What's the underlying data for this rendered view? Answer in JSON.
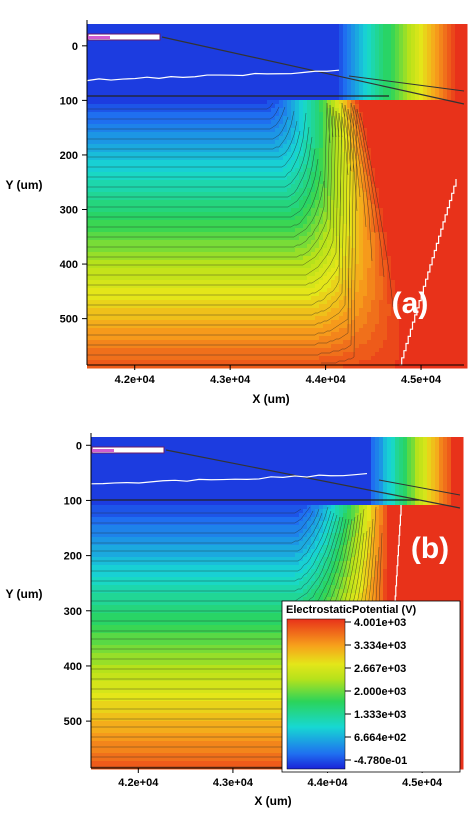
{
  "chart_data": [
    {
      "type": "heatmap",
      "panel_label": "(a)",
      "xlabel": "X (um)",
      "ylabel": "Y (um)",
      "xlim": [
        41500,
        45450
      ],
      "ylim": [
        585,
        -40
      ],
      "xticks": [
        "4.2e+04",
        "4.3e+04",
        "4.4e+04",
        "4.5e+04"
      ],
      "xtick_values": [
        42000,
        43000,
        44000,
        45000
      ],
      "yticks": [
        "0",
        "100",
        "200",
        "300",
        "400",
        "500"
      ],
      "ytick_values": [
        0,
        100,
        200,
        300,
        400,
        500
      ],
      "high_region_left_x": 44350,
      "high_region_bottom_x": 44900
    },
    {
      "type": "heatmap",
      "panel_label": "(b)",
      "xlabel": "X (um)",
      "ylabel": "Y (um)",
      "xlim": [
        41500,
        45400
      ],
      "ylim": [
        585,
        -15
      ],
      "xticks": [
        "4.2e+04",
        "4.3e+04",
        "4.4e+04",
        "4.5e+04"
      ],
      "xtick_values": [
        42000,
        43000,
        44000,
        45000
      ],
      "yticks": [
        "0",
        "100",
        "200",
        "300",
        "400",
        "500"
      ],
      "ytick_values": [
        0,
        100,
        200,
        300,
        400,
        500
      ],
      "high_region_left_x": 44650,
      "high_region_bottom_x": 44650
    }
  ],
  "legend": {
    "title": "ElectrostaticPotential (V)",
    "labels": [
      "4.001e+03",
      "3.334e+03",
      "2.667e+03",
      "2.000e+03",
      "1.333e+03",
      "6.664e+02",
      "-4.780e-01"
    ],
    "colors": [
      "#e8321a",
      "#f7a21b",
      "#e4e619",
      "#2bd45a",
      "#17d8d2",
      "#1f6ff0",
      "#1a22d8"
    ]
  }
}
